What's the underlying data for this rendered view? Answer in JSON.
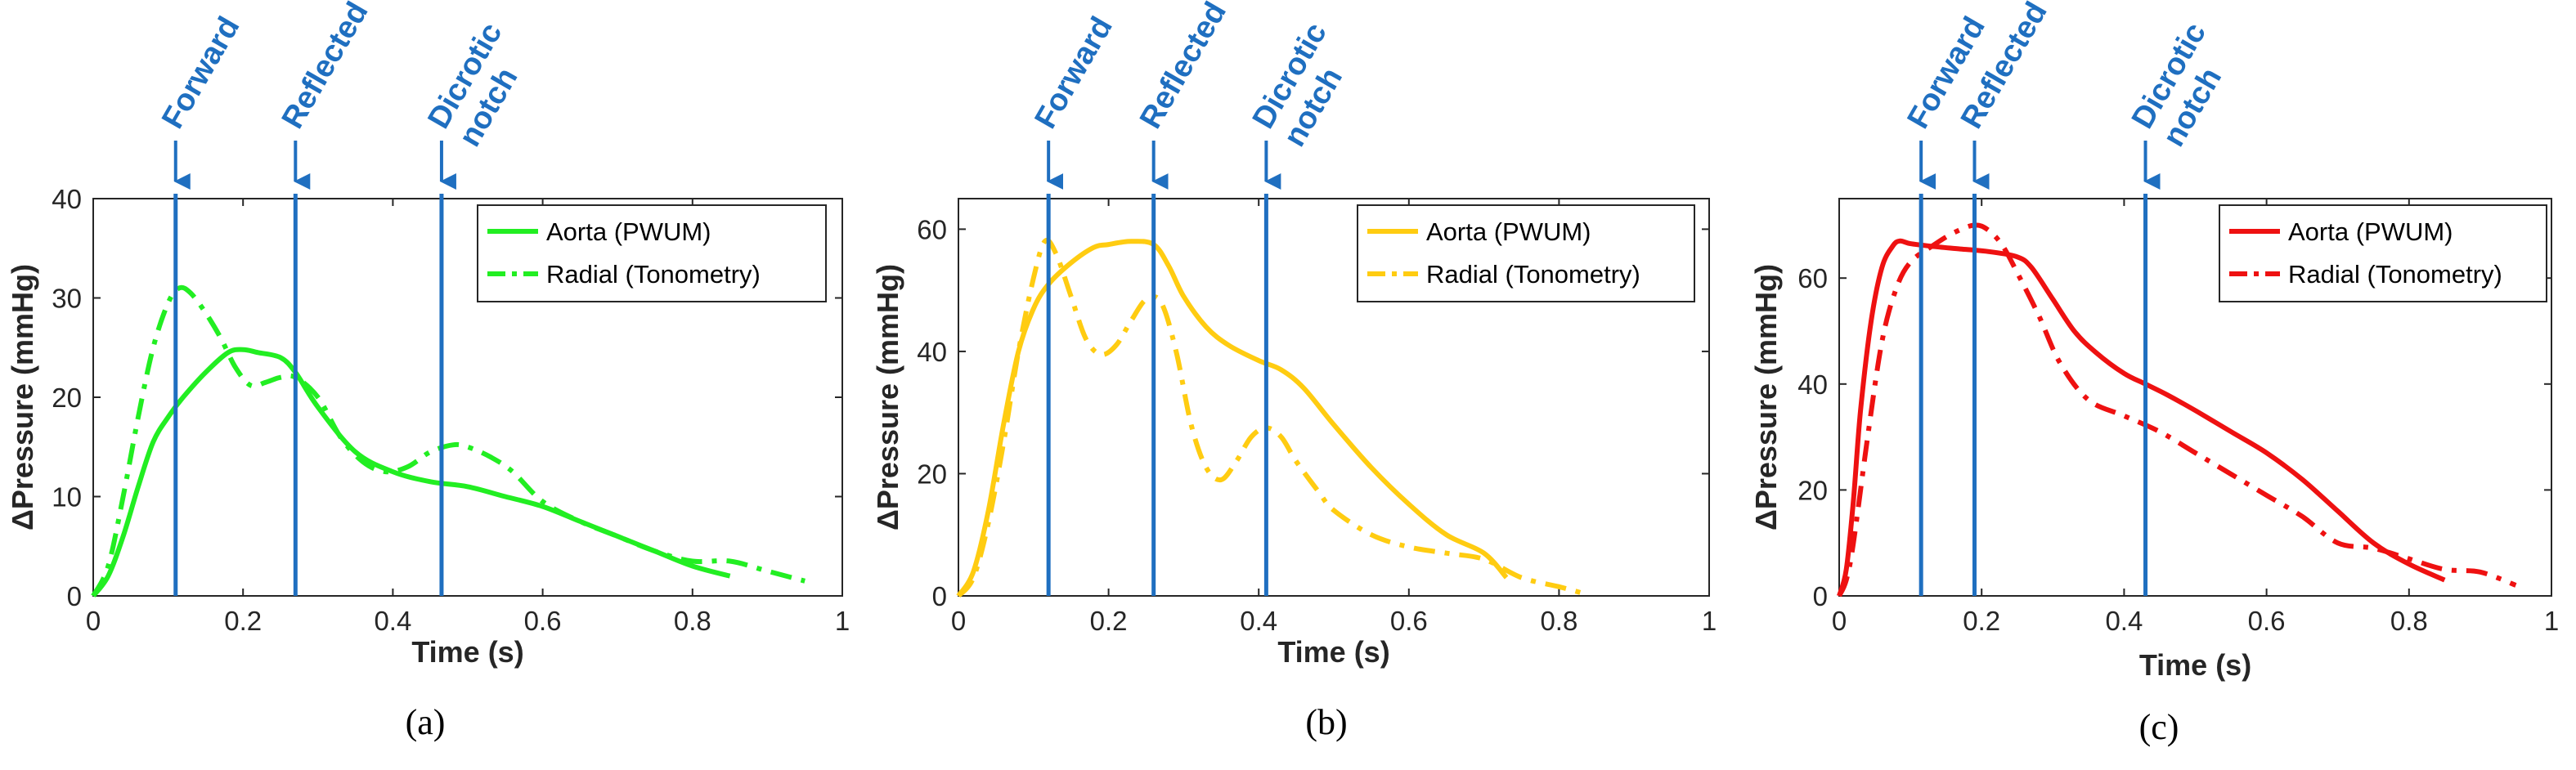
{
  "chart_data": [
    {
      "type": "line",
      "panel_label": "(a)",
      "color": "#22ee22",
      "xlabel": "Time (s)",
      "ylabel": "ΔPressure (mmHg)",
      "xlim": [
        0,
        1
      ],
      "ylim": [
        0,
        40
      ],
      "xticks": [
        0,
        0.2,
        0.4,
        0.6,
        0.8,
        1
      ],
      "xtick_labels": [
        "0",
        "0.2",
        "0.4",
        "0.6",
        "0.8",
        "1"
      ],
      "yticks": [
        0,
        10,
        20,
        30,
        40
      ],
      "ytick_labels": [
        "0",
        "10",
        "20",
        "30",
        "40"
      ],
      "legend_position": "top-right",
      "annotations": [
        {
          "lines": [
            "Forward"
          ],
          "x": 0.11
        },
        {
          "lines": [
            "Reflected"
          ],
          "x": 0.27
        },
        {
          "lines": [
            "Dicrotic",
            "notch"
          ],
          "x": 0.465
        }
      ],
      "series": [
        {
          "name": "Aorta (PWUM)",
          "style": "solid",
          "x": [
            0,
            0.02,
            0.04,
            0.06,
            0.08,
            0.1,
            0.12,
            0.15,
            0.18,
            0.2,
            0.22,
            0.25,
            0.27,
            0.3,
            0.35,
            0.4,
            0.45,
            0.5,
            0.55,
            0.6,
            0.65,
            0.7,
            0.75,
            0.8,
            0.85
          ],
          "y": [
            0,
            2,
            6,
            11,
            15.5,
            18,
            20,
            22.5,
            24.5,
            24.8,
            24.5,
            24,
            22.5,
            19,
            14.5,
            12.5,
            11.5,
            11,
            10,
            9,
            7.5,
            6,
            4.5,
            3,
            2
          ]
        },
        {
          "name": "Radial (Tonometry)",
          "style": "dashdot",
          "x": [
            0,
            0.02,
            0.04,
            0.06,
            0.08,
            0.1,
            0.115,
            0.13,
            0.15,
            0.17,
            0.19,
            0.21,
            0.23,
            0.25,
            0.27,
            0.3,
            0.33,
            0.36,
            0.39,
            0.42,
            0.45,
            0.48,
            0.5,
            0.53,
            0.56,
            0.6,
            0.65,
            0.7,
            0.75,
            0.8,
            0.85,
            0.9,
            0.95
          ],
          "y": [
            0,
            3,
            10,
            18,
            25,
            29.5,
            31,
            30.5,
            28.5,
            26,
            23,
            21.2,
            21.5,
            22,
            22,
            20,
            16,
            13.5,
            12.5,
            13,
            14.5,
            15.2,
            15,
            14,
            12.5,
            9.5,
            7.5,
            6,
            4.5,
            3.5,
            3.5,
            2.5,
            1.5
          ]
        }
      ]
    },
    {
      "type": "line",
      "panel_label": "(b)",
      "color": "#ffcc11",
      "xlabel": "Time (s)",
      "ylabel": "ΔPressure (mmHg)",
      "xlim": [
        0,
        1
      ],
      "ylim": [
        0,
        65
      ],
      "xticks": [
        0,
        0.2,
        0.4,
        0.6,
        0.8,
        1
      ],
      "xtick_labels": [
        "0",
        "0.2",
        "0.4",
        "0.6",
        "0.8",
        "1"
      ],
      "yticks": [
        0,
        20,
        40,
        60
      ],
      "ytick_labels": [
        "0",
        "20",
        "40",
        "60"
      ],
      "legend_position": "top-right",
      "annotations": [
        {
          "lines": [
            "Forward"
          ],
          "x": 0.12
        },
        {
          "lines": [
            "Reflected"
          ],
          "x": 0.26
        },
        {
          "lines": [
            "Dicrotic",
            "notch"
          ],
          "x": 0.41
        }
      ],
      "series": [
        {
          "name": "Aorta (PWUM)",
          "style": "solid",
          "x": [
            0,
            0.02,
            0.04,
            0.06,
            0.08,
            0.1,
            0.12,
            0.15,
            0.18,
            0.2,
            0.23,
            0.26,
            0.28,
            0.3,
            0.33,
            0.36,
            0.4,
            0.43,
            0.46,
            0.5,
            0.55,
            0.6,
            0.65,
            0.7,
            0.73
          ],
          "y": [
            0,
            4,
            14,
            28,
            40,
            47,
            51,
            54.5,
            57,
            57.5,
            58,
            57.5,
            54,
            49,
            44,
            41,
            38.5,
            37,
            34,
            28,
            21,
            15,
            10,
            7,
            3
          ]
        },
        {
          "name": "Radial (Tonometry)",
          "style": "dashdot",
          "x": [
            0,
            0.02,
            0.04,
            0.06,
            0.08,
            0.1,
            0.115,
            0.13,
            0.15,
            0.17,
            0.19,
            0.21,
            0.23,
            0.25,
            0.27,
            0.29,
            0.31,
            0.33,
            0.35,
            0.37,
            0.39,
            0.41,
            0.43,
            0.45,
            0.48,
            0.5,
            0.55,
            0.6,
            0.65,
            0.7,
            0.75,
            0.8,
            0.83
          ],
          "y": [
            0,
            3,
            12,
            25,
            40,
            52,
            58,
            56,
            49,
            42,
            39.5,
            41,
            45,
            48.5,
            48,
            40,
            28,
            21,
            19,
            22,
            26,
            27.5,
            26,
            22,
            17,
            14,
            10,
            8,
            7,
            6,
            3,
            1.5,
            0.5
          ]
        }
      ]
    },
    {
      "type": "line",
      "panel_label": "(c)",
      "color": "#ee1111",
      "xlabel": "Time (s)",
      "ylabel": "ΔPressure (mmHg)",
      "xlim": [
        0,
        1
      ],
      "ylim": [
        0,
        75
      ],
      "xticks": [
        0,
        0.2,
        0.4,
        0.6,
        0.8,
        1
      ],
      "xtick_labels": [
        "0",
        "0.2",
        "0.4",
        "0.6",
        "0.8",
        "1"
      ],
      "yticks": [
        0,
        20,
        40,
        60
      ],
      "ytick_labels": [
        "0",
        "20",
        "40",
        "60"
      ],
      "legend_position": "top-right",
      "annotations": [
        {
          "lines": [
            "Forward"
          ],
          "x": 0.115
        },
        {
          "lines": [
            "Reflected"
          ],
          "x": 0.19
        },
        {
          "lines": [
            "Dicrotic",
            "notch"
          ],
          "x": 0.43
        }
      ],
      "series": [
        {
          "name": "Aorta (PWUM)",
          "style": "solid",
          "x": [
            0,
            0.01,
            0.02,
            0.03,
            0.045,
            0.06,
            0.075,
            0.085,
            0.1,
            0.13,
            0.17,
            0.21,
            0.25,
            0.27,
            0.3,
            0.33,
            0.36,
            0.4,
            0.43,
            0.46,
            0.5,
            0.55,
            0.6,
            0.65,
            0.7,
            0.75,
            0.8,
            0.85
          ],
          "y": [
            0,
            5,
            18,
            35,
            52,
            62,
            66,
            67,
            66.5,
            66,
            65.5,
            65,
            64,
            62,
            56,
            50,
            46,
            42,
            40,
            38,
            35,
            31,
            27,
            22,
            16,
            10,
            6,
            3
          ]
        },
        {
          "name": "Radial (Tonometry)",
          "style": "dashdot",
          "x": [
            0,
            0.01,
            0.02,
            0.04,
            0.06,
            0.08,
            0.1,
            0.13,
            0.16,
            0.19,
            0.21,
            0.23,
            0.25,
            0.28,
            0.31,
            0.35,
            0.4,
            0.45,
            0.5,
            0.55,
            0.6,
            0.65,
            0.7,
            0.75,
            0.8,
            0.85,
            0.9,
            0.95
          ],
          "y": [
            0,
            3,
            10,
            30,
            48,
            58,
            63,
            66,
            68.5,
            70,
            69,
            66,
            61,
            53,
            44,
            37,
            34,
            31,
            27,
            23,
            19,
            15,
            10,
            9,
            7,
            5,
            4.5,
            2
          ]
        }
      ]
    }
  ]
}
